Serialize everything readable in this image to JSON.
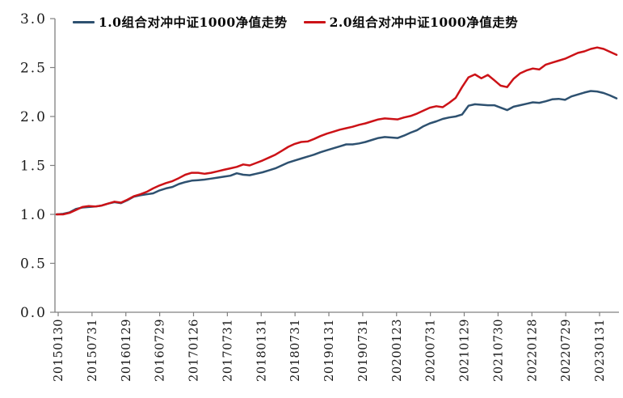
{
  "chart_data": {
    "type": "line",
    "title": "",
    "xlabel": "",
    "ylabel": "",
    "ylim": [
      0.0,
      3.0
    ],
    "grid": false,
    "legend_position": "top-center",
    "axis_color": "#808080",
    "tick_label_color": "#1a1a1a",
    "y_tick_labels": [
      "0.0",
      "0.5",
      "1.0",
      "1.5",
      "2.0",
      "2.5",
      "3.0"
    ],
    "y_tick_values": [
      0.0,
      0.5,
      1.0,
      1.5,
      2.0,
      2.5,
      3.0
    ],
    "x_labels": [
      "20150130",
      "20150731",
      "20160129",
      "20160729",
      "20170126",
      "20170731",
      "20180131",
      "20180731",
      "20190131",
      "20190731",
      "20200123",
      "20200731",
      "20210129",
      "20210730",
      "20220128",
      "20220729",
      "20230131"
    ],
    "series": [
      {
        "name": "1.0组合对冲中证1000净值走势",
        "color": "#2e5170",
        "values": [
          1.0,
          1.005,
          1.02,
          1.055,
          1.07,
          1.075,
          1.08,
          1.09,
          1.11,
          1.125,
          1.115,
          1.145,
          1.18,
          1.195,
          1.205,
          1.215,
          1.245,
          1.265,
          1.28,
          1.31,
          1.33,
          1.345,
          1.35,
          1.355,
          1.365,
          1.375,
          1.385,
          1.395,
          1.42,
          1.405,
          1.4,
          1.415,
          1.43,
          1.45,
          1.47,
          1.5,
          1.53,
          1.55,
          1.57,
          1.59,
          1.61,
          1.635,
          1.655,
          1.675,
          1.695,
          1.715,
          1.715,
          1.725,
          1.74,
          1.76,
          1.78,
          1.79,
          1.785,
          1.78,
          1.805,
          1.835,
          1.86,
          1.9,
          1.93,
          1.95,
          1.975,
          1.99,
          2.0,
          2.02,
          2.11,
          2.125,
          2.12,
          2.115,
          2.115,
          2.09,
          2.065,
          2.1,
          2.115,
          2.13,
          2.145,
          2.14,
          2.155,
          2.175,
          2.18,
          2.17,
          2.205,
          2.225,
          2.245,
          2.26,
          2.255,
          2.24,
          2.215,
          2.185
        ]
      },
      {
        "name": "2.0组合对冲中证1000净值走势",
        "color": "#cc1217",
        "values": [
          1.0,
          1.0,
          1.015,
          1.045,
          1.075,
          1.085,
          1.08,
          1.09,
          1.11,
          1.13,
          1.12,
          1.15,
          1.185,
          1.205,
          1.23,
          1.265,
          1.295,
          1.32,
          1.34,
          1.37,
          1.405,
          1.425,
          1.425,
          1.415,
          1.425,
          1.44,
          1.455,
          1.47,
          1.485,
          1.51,
          1.5,
          1.525,
          1.55,
          1.58,
          1.61,
          1.65,
          1.69,
          1.72,
          1.74,
          1.745,
          1.77,
          1.8,
          1.825,
          1.845,
          1.865,
          1.88,
          1.895,
          1.915,
          1.93,
          1.95,
          1.97,
          1.98,
          1.975,
          1.97,
          1.99,
          2.005,
          2.03,
          2.06,
          2.09,
          2.105,
          2.095,
          2.14,
          2.19,
          2.3,
          2.4,
          2.43,
          2.39,
          2.425,
          2.37,
          2.315,
          2.3,
          2.385,
          2.44,
          2.47,
          2.49,
          2.48,
          2.53,
          2.55,
          2.57,
          2.59,
          2.62,
          2.65,
          2.665,
          2.69,
          2.705,
          2.69,
          2.66,
          2.63
        ]
      }
    ]
  }
}
